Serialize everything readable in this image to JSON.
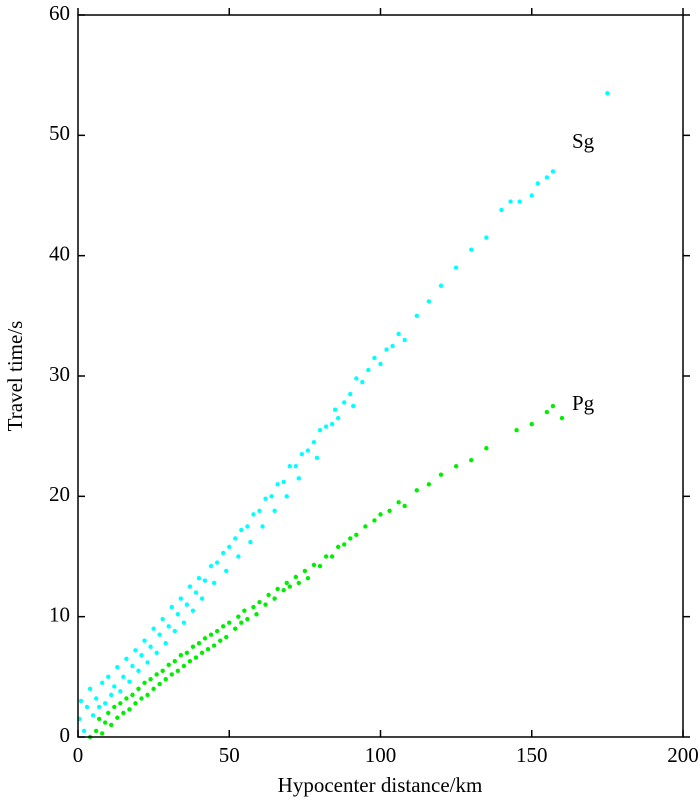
{
  "chart_data": {
    "type": "scatter",
    "xlabel": "Hypocenter distance/km",
    "ylabel": "Travel time/s",
    "xlim": [
      0,
      200
    ],
    "ylim": [
      0,
      60
    ],
    "xticks": [
      0,
      50,
      100,
      150,
      200
    ],
    "yticks": [
      0,
      10,
      20,
      30,
      40,
      50,
      60
    ],
    "series": [
      {
        "name": "Sg",
        "color": "#00ffff",
        "x": [
          0.5,
          1,
          2,
          3,
          4,
          5,
          6,
          7,
          8,
          9,
          10,
          11,
          12,
          13,
          14,
          15,
          16,
          17,
          18,
          19,
          20,
          21,
          22,
          23,
          24,
          25,
          26,
          27,
          28,
          29,
          30,
          31,
          32,
          33,
          34,
          35,
          36,
          37,
          38,
          39,
          40,
          41,
          42,
          44,
          45,
          46,
          48,
          49,
          50,
          52,
          53,
          54,
          56,
          57,
          58,
          60,
          61,
          62,
          64,
          65,
          66,
          68,
          69,
          70,
          72,
          73,
          74,
          76,
          78,
          79,
          80,
          82,
          84,
          85,
          86,
          88,
          90,
          91,
          92,
          94,
          96,
          98,
          100,
          102,
          104,
          106,
          108,
          112,
          116,
          120,
          125,
          130,
          135,
          140,
          143,
          146,
          150,
          152,
          155,
          157,
          175
        ],
        "values": [
          1.5,
          3,
          0.5,
          2.5,
          4,
          1.8,
          3.2,
          2.5,
          4.5,
          2.8,
          5,
          3.5,
          4.2,
          5.8,
          3.8,
          5,
          6.5,
          4.6,
          5.9,
          7.2,
          5.5,
          6.8,
          8,
          6.2,
          7.5,
          9,
          7,
          8.5,
          9.8,
          7.8,
          9.2,
          10.8,
          8.8,
          10.2,
          11.5,
          9.5,
          11,
          12.5,
          10.5,
          12,
          13.2,
          11.5,
          13,
          14.2,
          12.8,
          14.5,
          15.3,
          13.8,
          15.8,
          16.5,
          15,
          17.2,
          17.5,
          16.2,
          18.5,
          18.8,
          17.5,
          19.8,
          20,
          18.8,
          21,
          21.2,
          20,
          22.5,
          22.5,
          21.5,
          23.5,
          23.8,
          24.5,
          23.2,
          25.5,
          25.8,
          26,
          27.2,
          26.5,
          27.8,
          28.5,
          27.5,
          29.8,
          29.5,
          30.5,
          31.5,
          31,
          32.2,
          32.5,
          33.5,
          33,
          35,
          36.2,
          37.5,
          39,
          40.5,
          41.5,
          43.8,
          44.5,
          44.5,
          45,
          46,
          46.5,
          47,
          53.5
        ]
      },
      {
        "name": "Pg",
        "color": "#00ee00",
        "x": [
          4,
          6,
          7,
          8,
          9,
          10,
          11,
          12,
          13,
          14,
          15,
          16,
          17,
          18,
          19,
          20,
          21,
          22,
          23,
          24,
          25,
          26,
          27,
          28,
          29,
          30,
          31,
          32,
          33,
          34,
          35,
          36,
          37,
          38,
          39,
          40,
          41,
          42,
          43,
          44,
          45,
          46,
          47,
          48,
          49,
          50,
          52,
          53,
          54,
          55,
          56,
          58,
          59,
          60,
          62,
          63,
          65,
          66,
          68,
          69,
          70,
          72,
          73,
          75,
          76,
          78,
          80,
          82,
          84,
          86,
          88,
          90,
          92,
          95,
          98,
          100,
          103,
          106,
          108,
          112,
          116,
          120,
          125,
          130,
          135,
          145,
          150,
          155,
          157,
          160
        ],
        "values": [
          0,
          0.5,
          1.5,
          0.3,
          1.2,
          2,
          1,
          2.5,
          1.6,
          2.8,
          2,
          3.2,
          2.3,
          3.5,
          2.8,
          4,
          3.2,
          4.5,
          3.5,
          4.8,
          4,
          5.2,
          4.4,
          5.5,
          4.8,
          6,
          5.2,
          6.3,
          5.5,
          6.8,
          5.9,
          7,
          6.3,
          7.5,
          6.6,
          7.8,
          7,
          8.2,
          7.3,
          8.5,
          7.6,
          8.8,
          8,
          9.2,
          8.3,
          9.5,
          9,
          10,
          9.5,
          10.5,
          9.8,
          10.8,
          10.2,
          11.2,
          11,
          11.8,
          11.5,
          12.3,
          12.2,
          12.8,
          12.5,
          13.3,
          12.8,
          13.8,
          13.2,
          14.3,
          14.2,
          15,
          15,
          15.8,
          16,
          16.5,
          16.8,
          17.5,
          18,
          18.5,
          18.8,
          19.5,
          19.2,
          20.5,
          21,
          21.8,
          22.5,
          23,
          24,
          25.5,
          26,
          27,
          27.5,
          26.5
        ]
      }
    ]
  }
}
